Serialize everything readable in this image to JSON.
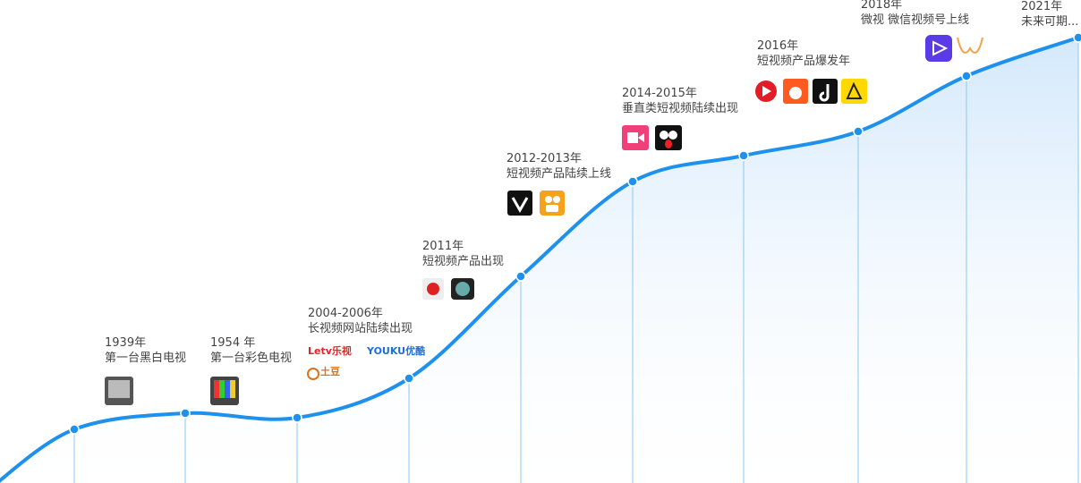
{
  "milestones": [
    {
      "date": "1939年",
      "text": "第一台黑白电视"
    },
    {
      "date": "1954 年",
      "text": "第一台彩色电视"
    },
    {
      "date": "2004-2006年",
      "text": "长视频网站陆续出现",
      "logos": [
        "Letv乐视",
        "YOUKU优酷",
        "土豆"
      ]
    },
    {
      "date": "2011年",
      "text": "短视频产品出现"
    },
    {
      "date": "2012-2013年",
      "text": "短视频产品陆续上线"
    },
    {
      "date": "2014-2015年",
      "text": "垂直类短视频陆续出现"
    },
    {
      "date": "2016年",
      "text": "短视频产品爆发年"
    },
    {
      "date": "2018年",
      "text": "微视  微信视频号上线"
    },
    {
      "date": "2021年",
      "text": "未来可期..."
    }
  ]
}
